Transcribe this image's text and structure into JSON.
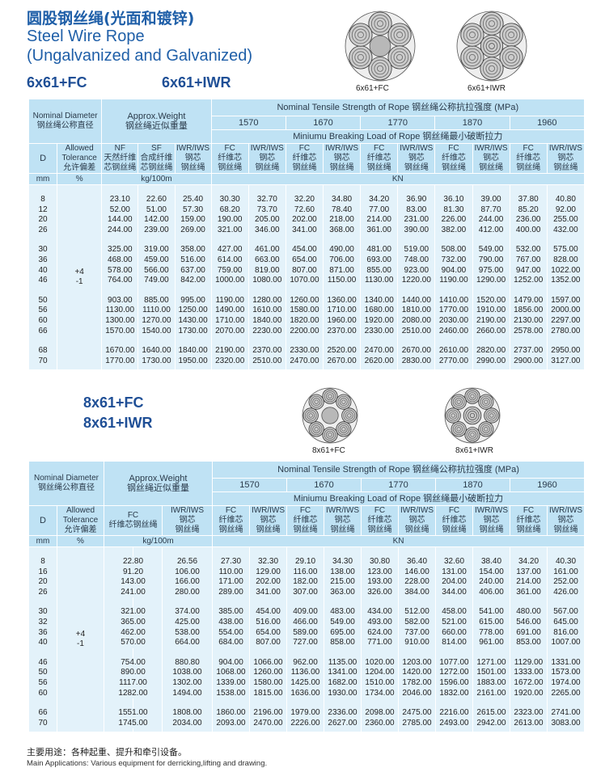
{
  "header": {
    "title_cn": "圆股钢丝绳(光面和镀锌)",
    "title_en_1": "Steel Wire Rope",
    "title_en_2": "(Ungalvanized and Galvanized)"
  },
  "section1": {
    "model_fc": "6x61+FC",
    "model_iwr": "6x61+IWR",
    "caption_fc": "6x61+FC",
    "caption_iwr": "6x61+IWR",
    "header": {
      "nominal_diameter": "Nominal Diameter",
      "nominal_diameter_cn": "钢丝绳公称直径",
      "approx_weight": "Approx.Weight",
      "approx_weight_cn": "钢丝绳近似重量",
      "tensile": "Nominal Tensile Strength of Rope  钢丝绳公称抗拉强度 (MPa)",
      "strengths": [
        "1570",
        "1670",
        "1770",
        "1870",
        "1960"
      ],
      "breaking": "Miniumu Breaking Load of Rope  钢丝绳最小破断拉力",
      "d": "D",
      "tolerance": [
        "Allowed",
        "Tolerance",
        "允许偏差"
      ],
      "weight_cols": [
        [
          "NF",
          "天然纤维",
          "芯钢丝绳"
        ],
        [
          "SF",
          "合成纤维",
          "芯钢丝绳"
        ],
        [
          "IWR/IWS",
          "钢芯",
          "钢丝绳"
        ]
      ],
      "fc_col": [
        "FC",
        "纤维芯",
        "钢丝绳"
      ],
      "iwr_col": [
        "IWR/IWS",
        "钢芯",
        "钢丝绳"
      ],
      "unit_mm": "mm",
      "unit_pct": "%",
      "unit_weight": "kg/100m",
      "unit_load": "KN"
    },
    "tolerance_value": [
      "+4",
      "-1"
    ],
    "groups": [
      [
        [
          "8",
          "23.10",
          "22.60",
          "25.40",
          "30.30",
          "32.70",
          "32.20",
          "34.80",
          "34.20",
          "36.90",
          "36.10",
          "39.00",
          "37.80",
          "40.80"
        ],
        [
          "12",
          "52.00",
          "51.00",
          "57.30",
          "68.20",
          "73.70",
          "72.60",
          "78.40",
          "77.00",
          "83.00",
          "81.30",
          "87.70",
          "85.20",
          "92.00"
        ],
        [
          "20",
          "144.00",
          "142.00",
          "159.00",
          "190.00",
          "205.00",
          "202.00",
          "218.00",
          "214.00",
          "231.00",
          "226.00",
          "244.00",
          "236.00",
          "255.00"
        ],
        [
          "26",
          "244.00",
          "239.00",
          "269.00",
          "321.00",
          "346.00",
          "341.00",
          "368.00",
          "361.00",
          "390.00",
          "382.00",
          "412.00",
          "400.00",
          "432.00"
        ]
      ],
      [
        [
          "30",
          "325.00",
          "319.00",
          "358.00",
          "427.00",
          "461.00",
          "454.00",
          "490.00",
          "481.00",
          "519.00",
          "508.00",
          "549.00",
          "532.00",
          "575.00"
        ],
        [
          "36",
          "468.00",
          "459.00",
          "516.00",
          "614.00",
          "663.00",
          "654.00",
          "706.00",
          "693.00",
          "748.00",
          "732.00",
          "790.00",
          "767.00",
          "828.00"
        ],
        [
          "40",
          "578.00",
          "566.00",
          "637.00",
          "759.00",
          "819.00",
          "807.00",
          "871.00",
          "855.00",
          "923.00",
          "904.00",
          "975.00",
          "947.00",
          "1022.00"
        ],
        [
          "46",
          "764.00",
          "749.00",
          "842.00",
          "1000.00",
          "1080.00",
          "1070.00",
          "1150.00",
          "1130.00",
          "1220.00",
          "1190.00",
          "1290.00",
          "1252.00",
          "1352.00"
        ]
      ],
      [
        [
          "50",
          "903.00",
          "885.00",
          "995.00",
          "1190.00",
          "1280.00",
          "1260.00",
          "1360.00",
          "1340.00",
          "1440.00",
          "1410.00",
          "1520.00",
          "1479.00",
          "1597.00"
        ],
        [
          "56",
          "1130.00",
          "1110.00",
          "1250.00",
          "1490.00",
          "1610.00",
          "1580.00",
          "1710.00",
          "1680.00",
          "1810.00",
          "1770.00",
          "1910.00",
          "1856.00",
          "2000.00"
        ],
        [
          "60",
          "1300.00",
          "1270.00",
          "1430.00",
          "1710.00",
          "1840.00",
          "1820.00",
          "1960.00",
          "1920.00",
          "2080.00",
          "2030.00",
          "2190.00",
          "2130.00",
          "2297.00"
        ],
        [
          "66",
          "1570.00",
          "1540.00",
          "1730.00",
          "2070.00",
          "2230.00",
          "2200.00",
          "2370.00",
          "2330.00",
          "2510.00",
          "2460.00",
          "2660.00",
          "2578.00",
          "2780.00"
        ]
      ],
      [
        [
          "68",
          "1670.00",
          "1640.00",
          "1840.00",
          "2190.00",
          "2370.00",
          "2330.00",
          "2520.00",
          "2470.00",
          "2670.00",
          "2610.00",
          "2820.00",
          "2737.00",
          "2950.00"
        ],
        [
          "70",
          "1770.00",
          "1730.00",
          "1950.00",
          "2320.00",
          "2510.00",
          "2470.00",
          "2670.00",
          "2620.00",
          "2830.00",
          "2770.00",
          "2990.00",
          "2900.00",
          "3127.00"
        ]
      ]
    ]
  },
  "section2": {
    "model_fc": "8x61+FC",
    "model_iwr": "8x61+IWR",
    "caption_fc": "8x61+FC",
    "caption_iwr": "8x61+IWR",
    "header": {
      "nominal_diameter": "Nominal Diameter",
      "nominal_diameter_cn": "钢丝绳公称直径",
      "approx_weight": "Approx.Weight",
      "approx_weight_cn": "钢丝绳近似重量",
      "tensile": "Nominal Tensile Strength of Rope  钢丝绳公称抗拉强度 (MPa)",
      "strengths": [
        "1570",
        "1670",
        "1770",
        "1870",
        "1960"
      ],
      "breaking": "Miniumu Breaking Load of Rope  钢丝绳最小破断拉力",
      "d": "D",
      "tolerance": [
        "Allowed",
        "Tolerance",
        "允许偏差"
      ],
      "weight_cols": [
        [
          "FC",
          "纤维芯钢丝绳"
        ],
        [
          "IWR/IWS",
          "钢芯",
          "钢丝绳"
        ]
      ],
      "fc_col": [
        "FC",
        "纤维芯",
        "钢丝绳"
      ],
      "iwr_col": [
        "IWR/IWS",
        "钢芯",
        "钢丝绳"
      ],
      "unit_mm": "mm",
      "unit_pct": "%",
      "unit_weight": "kg/100m",
      "unit_load": "KN"
    },
    "tolerance_value": [
      "+4",
      "-1"
    ],
    "groups": [
      [
        [
          "8",
          "22.80",
          "26.56",
          "27.30",
          "32.30",
          "29.10",
          "34.30",
          "30.80",
          "36.40",
          "32.60",
          "38.40",
          "34.20",
          "40.30"
        ],
        [
          "16",
          "91.20",
          "106.00",
          "110.00",
          "129.00",
          "116.00",
          "138.00",
          "123.00",
          "146.00",
          "131.00",
          "154.00",
          "137.00",
          "161.00"
        ],
        [
          "20",
          "143.00",
          "166.00",
          "171.00",
          "202.00",
          "182.00",
          "215.00",
          "193.00",
          "228.00",
          "204.00",
          "240.00",
          "214.00",
          "252.00"
        ],
        [
          "26",
          "241.00",
          "280.00",
          "289.00",
          "341.00",
          "307.00",
          "363.00",
          "326.00",
          "384.00",
          "344.00",
          "406.00",
          "361.00",
          "426.00"
        ]
      ],
      [
        [
          "30",
          "321.00",
          "374.00",
          "385.00",
          "454.00",
          "409.00",
          "483.00",
          "434.00",
          "512.00",
          "458.00",
          "541.00",
          "480.00",
          "567.00"
        ],
        [
          "32",
          "365.00",
          "425.00",
          "438.00",
          "516.00",
          "466.00",
          "549.00",
          "493.00",
          "582.00",
          "521.00",
          "615.00",
          "546.00",
          "645.00"
        ],
        [
          "36",
          "462.00",
          "538.00",
          "554.00",
          "654.00",
          "589.00",
          "695.00",
          "624.00",
          "737.00",
          "660.00",
          "778.00",
          "691.00",
          "816.00"
        ],
        [
          "40",
          "570.00",
          "664.00",
          "684.00",
          "807.00",
          "727.00",
          "858.00",
          "771.00",
          "910.00",
          "814.00",
          "961.00",
          "853.00",
          "1007.00"
        ]
      ],
      [
        [
          "46",
          "754.00",
          "880.80",
          "904.00",
          "1066.00",
          "962.00",
          "1135.00",
          "1020.00",
          "1203.00",
          "1077.00",
          "1271.00",
          "1129.00",
          "1331.00"
        ],
        [
          "50",
          "890.00",
          "1038.00",
          "1068.00",
          "1260.00",
          "1136.00",
          "1341.00",
          "1204.00",
          "1420.00",
          "1272.00",
          "1501.00",
          "1333.00",
          "1573.00"
        ],
        [
          "56",
          "1117.00",
          "1302.00",
          "1339.00",
          "1580.00",
          "1425.00",
          "1682.00",
          "1510.00",
          "1782.00",
          "1596.00",
          "1883.00",
          "1672.00",
          "1974.00"
        ],
        [
          "60",
          "1282.00",
          "1494.00",
          "1538.00",
          "1815.00",
          "1636.00",
          "1930.00",
          "1734.00",
          "2046.00",
          "1832.00",
          "2161.00",
          "1920.00",
          "2265.00"
        ]
      ],
      [
        [
          "66",
          "1551.00",
          "1808.00",
          "1860.00",
          "2196.00",
          "1979.00",
          "2336.00",
          "2098.00",
          "2475.00",
          "2216.00",
          "2615.00",
          "2323.00",
          "2741.00"
        ],
        [
          "70",
          "1745.00",
          "2034.00",
          "2093.00",
          "2470.00",
          "2226.00",
          "2627.00",
          "2360.00",
          "2785.00",
          "2493.00",
          "2942.00",
          "2613.00",
          "3083.00"
        ]
      ]
    ]
  },
  "footer": {
    "applications_cn": "主要用途：各种起重、提升和牵引设备。",
    "applications_en": "Main Applications: Various equipment for derricking,lifting and drawing."
  }
}
